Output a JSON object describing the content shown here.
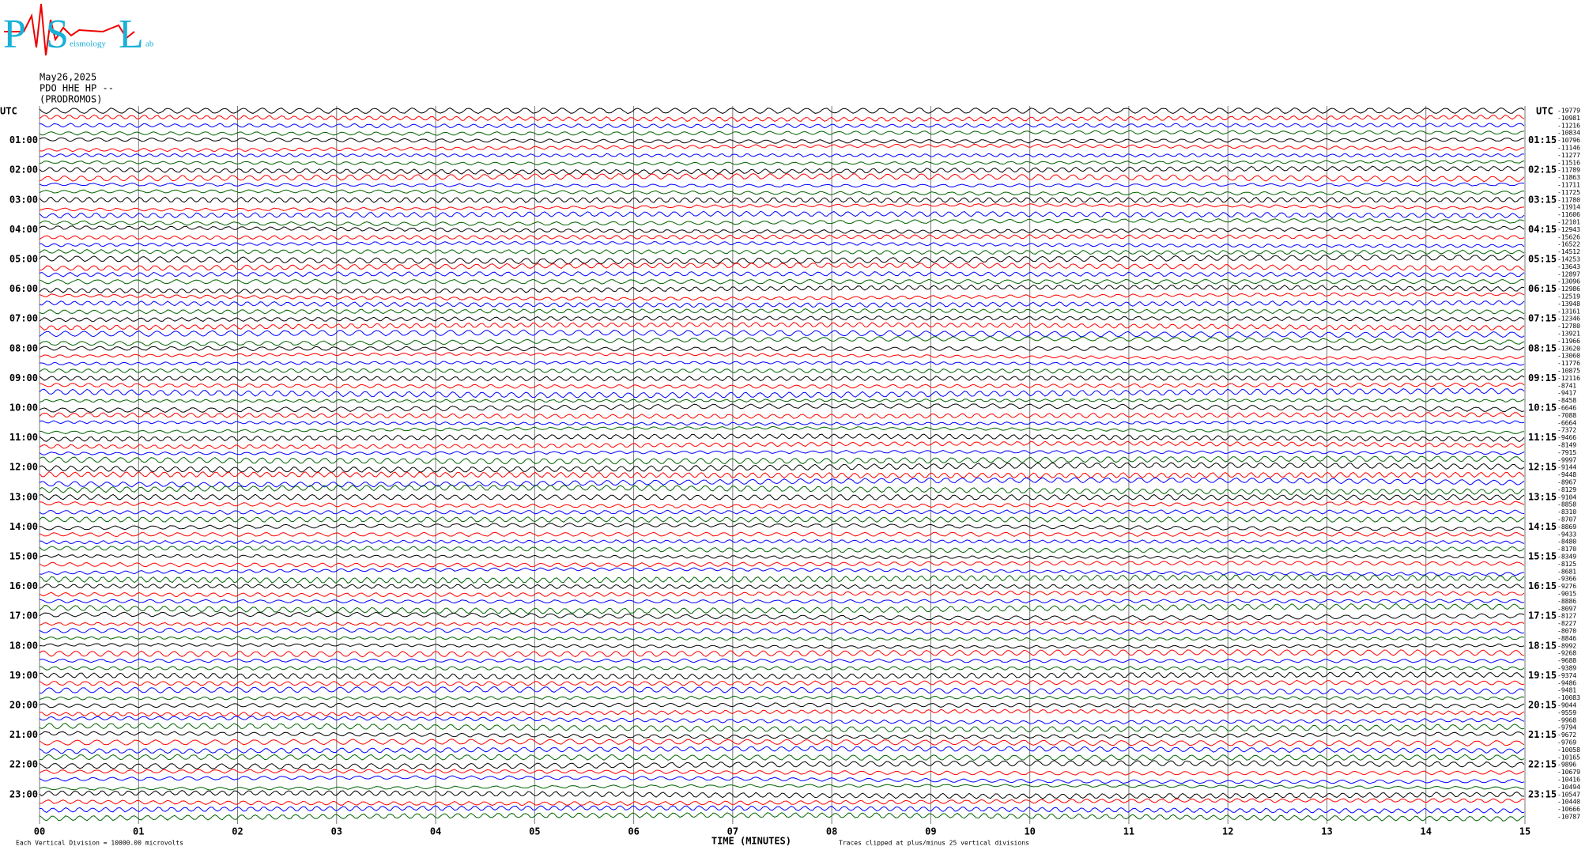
{
  "header": {
    "logo": {
      "letters": [
        "P",
        "S",
        "L"
      ],
      "small": [
        "eismology",
        "ab"
      ]
    },
    "date": "May26,2025",
    "station": "PDO HHE HP --",
    "site": "(PRODROMOS)"
  },
  "chart_data": {
    "type": "helicorder",
    "left_axis_title": "UTC",
    "right_axis_title": "UTC",
    "left_labels": [
      "01:00",
      "02:00",
      "03:00",
      "04:00",
      "05:00",
      "06:00",
      "07:00",
      "08:00",
      "09:00",
      "10:00",
      "11:00",
      "12:00",
      "13:00",
      "14:00",
      "15:00",
      "16:00",
      "17:00",
      "18:00",
      "19:00",
      "20:00",
      "21:00",
      "22:00",
      "23:00"
    ],
    "right_labels": [
      "01:15",
      "02:15",
      "03:15",
      "04:15",
      "05:15",
      "06:15",
      "07:15",
      "08:15",
      "09:15",
      "10:15",
      "11:15",
      "12:15",
      "13:15",
      "14:15",
      "15:15",
      "16:15",
      "17:15",
      "18:15",
      "19:15",
      "20:15",
      "21:15",
      "22:15",
      "23:15"
    ],
    "trace_offsets": [
      -19779,
      -10981,
      -11216,
      -10834,
      -10796,
      -11146,
      -11277,
      -11516,
      -11789,
      -11863,
      -11711,
      -11725,
      -11780,
      -11914,
      -11606,
      -12101,
      -12943,
      -15626,
      -16522,
      -14512,
      -14253,
      -13643,
      -12897,
      -13096,
      -12986,
      -12519,
      -13948,
      -13161,
      -12346,
      -12780,
      -13921,
      -11966,
      -13620,
      -13060,
      -11776,
      -10875,
      -12116,
      -8741,
      -9417,
      -8458,
      -6646,
      -7088,
      -6664,
      -7372,
      -9466,
      -8149,
      -7915,
      -9997,
      -9144,
      -9448,
      -8967,
      -8129,
      -9104,
      -8858,
      -8310,
      -8707,
      -8869,
      -9433,
      -8480,
      -8170,
      -8349,
      -8125,
      -8681,
      -9366,
      -9276,
      -9015,
      -8886,
      -8097,
      -8127,
      -8227,
      -8070,
      -8846,
      -8992,
      -9268,
      -9688,
      -9389,
      -9374,
      -9486,
      -9481,
      -10083,
      -9044,
      -9559,
      -9968,
      -9794,
      -9672,
      -9769,
      -10058,
      -10165,
      -9896,
      -10679,
      -10416,
      -10494,
      -10547,
      -10440,
      -10666,
      -10787
    ],
    "colors": [
      "#000000",
      "#ff0000",
      "#0000ff",
      "#006400"
    ],
    "xlim": [
      0,
      15
    ],
    "xticks": [
      {
        "value": 0,
        "label": "00"
      },
      {
        "value": 1,
        "label": "01"
      },
      {
        "value": 2,
        "label": "02"
      },
      {
        "value": 3,
        "label": "03"
      },
      {
        "value": 4,
        "label": "04"
      },
      {
        "value": 5,
        "label": "05"
      },
      {
        "value": 6,
        "label": "06"
      },
      {
        "value": 7,
        "label": "07"
      },
      {
        "value": 8,
        "label": "08"
      },
      {
        "value": 9,
        "label": "09"
      },
      {
        "value": 10,
        "label": "10"
      },
      {
        "value": 11,
        "label": "11"
      },
      {
        "value": 12,
        "label": "12"
      },
      {
        "value": 13,
        "label": "13"
      },
      {
        "value": 14,
        "label": "14"
      },
      15
    ],
    "x_label": "TIME (MINUTES)",
    "notes": [
      "Each Vertical Division = 10000.00 microvolts",
      "Traces clipped at plus/minus 25 vertical divisions"
    ],
    "grid": true
  }
}
